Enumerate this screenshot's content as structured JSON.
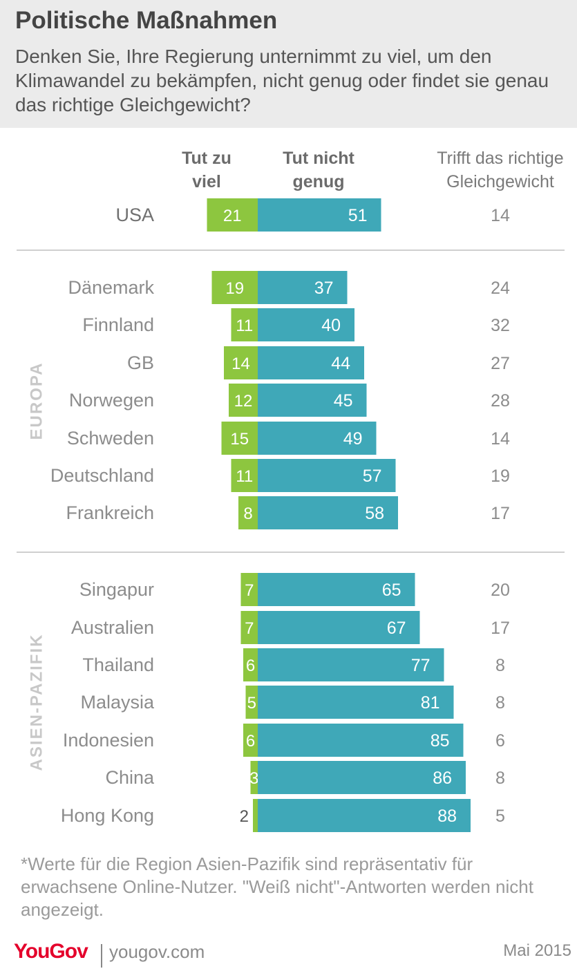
{
  "header": {
    "title": "Politische Maßnahmen",
    "subtitle": "Denken Sie, Ihre Regierung unternimmt zu viel, um den Klimawandel zu bekämpfen, nicht genug oder findet sie genau das richtige Gleichgewicht?"
  },
  "chart_data": {
    "type": "bar",
    "orientation": "horizontal-diverging",
    "columns": {
      "too_much": [
        "Tut zu",
        "viel"
      ],
      "not_enough": [
        "Tut nicht",
        "genug"
      ],
      "right_balance": [
        "Trifft das richtige",
        "Gleichgewicht"
      ]
    },
    "groups": [
      {
        "name": "",
        "categories": [
          "USA"
        ],
        "too_much": [
          21
        ],
        "not_enough": [
          51
        ],
        "right_balance": [
          14
        ]
      },
      {
        "name": "EUROPA",
        "categories": [
          "Dänemark",
          "Finnland",
          "GB",
          "Norwegen",
          "Schweden",
          "Deutschland",
          "Frankreich"
        ],
        "too_much": [
          19,
          11,
          14,
          12,
          15,
          11,
          8
        ],
        "not_enough": [
          37,
          40,
          44,
          45,
          49,
          57,
          58
        ],
        "right_balance": [
          24,
          32,
          27,
          28,
          14,
          19,
          17
        ]
      },
      {
        "name": "ASIEN-PAZIFIK",
        "categories": [
          "Singapur",
          "Australien",
          "Thailand",
          "Malaysia",
          "Indonesien",
          "China",
          "Hong Kong"
        ],
        "too_much": [
          7,
          7,
          6,
          5,
          6,
          3,
          2
        ],
        "not_enough": [
          65,
          67,
          77,
          81,
          85,
          86,
          88
        ],
        "right_balance": [
          20,
          17,
          8,
          8,
          6,
          8,
          5
        ]
      }
    ],
    "colors": {
      "too_much": "#8dc63f",
      "not_enough": "#3fa8b8"
    }
  },
  "footnote": "*Werte für die Region Asien-Pazifik sind repräsentativ für erwachsene Online-Nutzer. \"Weiß nicht\"-Antworten werden nicht angezeigt.",
  "footer": {
    "brand": "YouGov",
    "site": "yougov.com",
    "date": "Mai 2015"
  }
}
